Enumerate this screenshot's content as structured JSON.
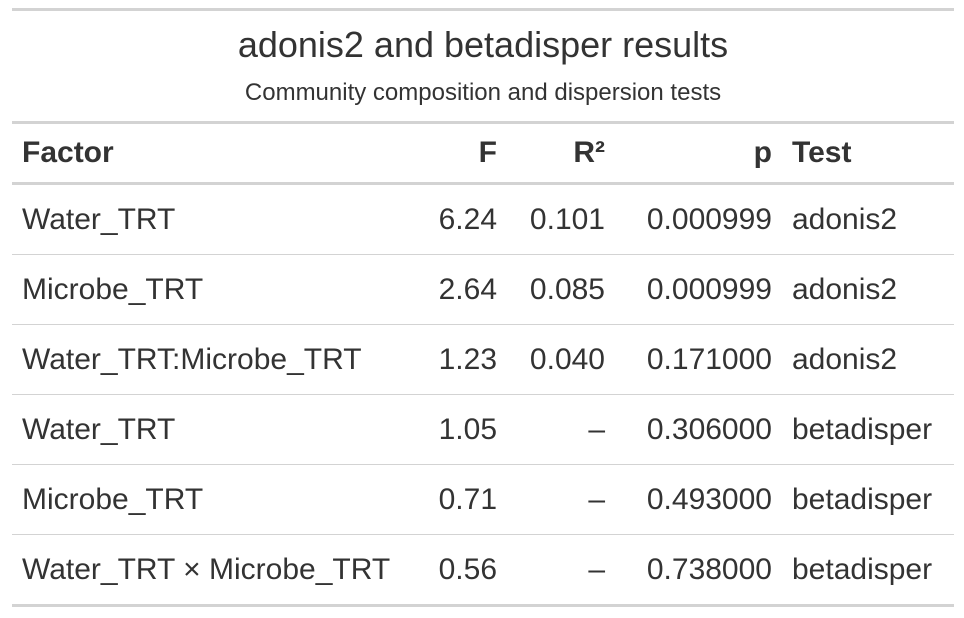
{
  "table": {
    "title": "adonis2 and betadisper results",
    "subtitle": "Community composition and dispersion tests",
    "columns": [
      "Factor",
      "F",
      "R²",
      "p",
      "Test"
    ],
    "rows": [
      {
        "factor": "Water_TRT",
        "f": "6.24",
        "r2": "0.101",
        "p": "0.000999",
        "test": "adonis2"
      },
      {
        "factor": "Microbe_TRT",
        "f": "2.64",
        "r2": "0.085",
        "p": "0.000999",
        "test": "adonis2"
      },
      {
        "factor": "Water_TRT:Microbe_TRT",
        "f": "1.23",
        "r2": "0.040",
        "p": "0.171000",
        "test": "adonis2"
      },
      {
        "factor": "Water_TRT",
        "f": "1.05",
        "r2": "–",
        "p": "0.306000",
        "test": "betadisper"
      },
      {
        "factor": "Microbe_TRT",
        "f": "0.71",
        "r2": "–",
        "p": "0.493000",
        "test": "betadisper"
      },
      {
        "factor": "Water_TRT × Microbe_TRT",
        "f": "0.56",
        "r2": "–",
        "p": "0.738000",
        "test": "betadisper"
      }
    ]
  }
}
